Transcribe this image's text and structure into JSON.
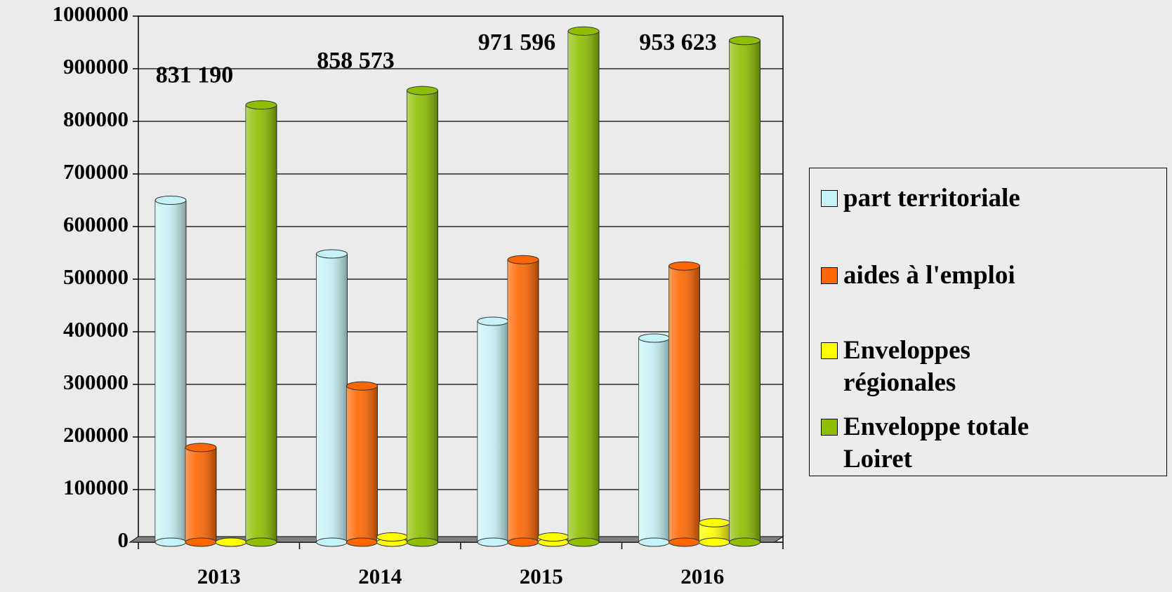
{
  "chart_data": {
    "type": "bar",
    "categories": [
      "2013",
      "2014",
      "2015",
      "2016"
    ],
    "series": [
      {
        "name": "part territoriale",
        "color": "#c6f3f7",
        "values": [
          650000,
          548000,
          420000,
          388000
        ]
      },
      {
        "name": "aides à l'emploi",
        "color": "#ff6600",
        "values": [
          180000,
          297000,
          537000,
          525000
        ]
      },
      {
        "name": "Enveloppes régionales",
        "color": "#ffff00",
        "values": [
          0,
          10000,
          10000,
          37000
        ]
      },
      {
        "name": "Enveloppe totale Loiret",
        "color": "#8dbf00",
        "values": [
          831190,
          858573,
          971596,
          953623
        ],
        "value_labels": [
          "831 190",
          "858 573",
          "971 596",
          "953 623"
        ]
      }
    ],
    "ylim": [
      0,
      1000000
    ],
    "yticks": [
      0,
      100000,
      200000,
      300000,
      400000,
      500000,
      600000,
      700000,
      800000,
      900000,
      1000000
    ],
    "grid": true
  }
}
